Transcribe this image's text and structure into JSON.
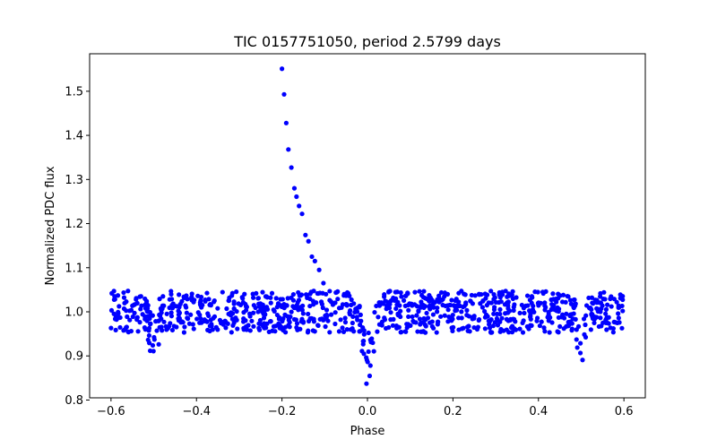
{
  "chart_data": {
    "type": "scatter",
    "title": "TIC 0157751050, period 2.5799 days",
    "xlabel": "Phase",
    "ylabel": "Normalized PDC flux",
    "xlim": [
      -0.65,
      0.65
    ],
    "ylim": [
      0.805,
      1.585
    ],
    "xticks": [
      -0.6,
      -0.4,
      -0.2,
      0.0,
      0.2,
      0.4,
      0.6
    ],
    "xtick_labels": [
      "−0.6",
      "−0.4",
      "−0.2",
      "0.0",
      "0.2",
      "0.4",
      "0.6"
    ],
    "yticks": [
      0.8,
      0.9,
      1.0,
      1.1,
      1.2,
      1.3,
      1.4,
      1.5
    ],
    "ytick_labels": [
      "0.8",
      "0.9",
      "1.0",
      "1.1",
      "1.2",
      "1.3",
      "1.4",
      "1.5"
    ],
    "grid": false,
    "marker_color": "#0000ff",
    "flare_points": [
      {
        "x": -0.2,
        "y": 1.551
      },
      {
        "x": -0.195,
        "y": 1.493
      },
      {
        "x": -0.19,
        "y": 1.428
      },
      {
        "x": -0.185,
        "y": 1.368
      },
      {
        "x": -0.178,
        "y": 1.327
      },
      {
        "x": -0.171,
        "y": 1.28
      },
      {
        "x": -0.166,
        "y": 1.261
      },
      {
        "x": -0.16,
        "y": 1.24
      },
      {
        "x": -0.153,
        "y": 1.222
      },
      {
        "x": -0.145,
        "y": 1.174
      },
      {
        "x": -0.138,
        "y": 1.16
      },
      {
        "x": -0.13,
        "y": 1.125
      },
      {
        "x": -0.123,
        "y": 1.115
      },
      {
        "x": -0.113,
        "y": 1.095
      },
      {
        "x": -0.103,
        "y": 1.065
      }
    ],
    "baseline": {
      "phase_range": [
        -0.6,
        0.6
      ],
      "flux_center": 1.0,
      "flux_scatter": 0.04,
      "bands": [
        0.97,
        1.0,
        1.03
      ],
      "point_count": 1000
    },
    "dips": [
      {
        "center": -0.5,
        "half_width": 0.018,
        "depth": 0.09
      },
      {
        "center": 0.0,
        "half_width": 0.025,
        "depth": 0.15
      },
      {
        "center": 0.5,
        "half_width": 0.018,
        "depth": 0.09
      }
    ]
  }
}
